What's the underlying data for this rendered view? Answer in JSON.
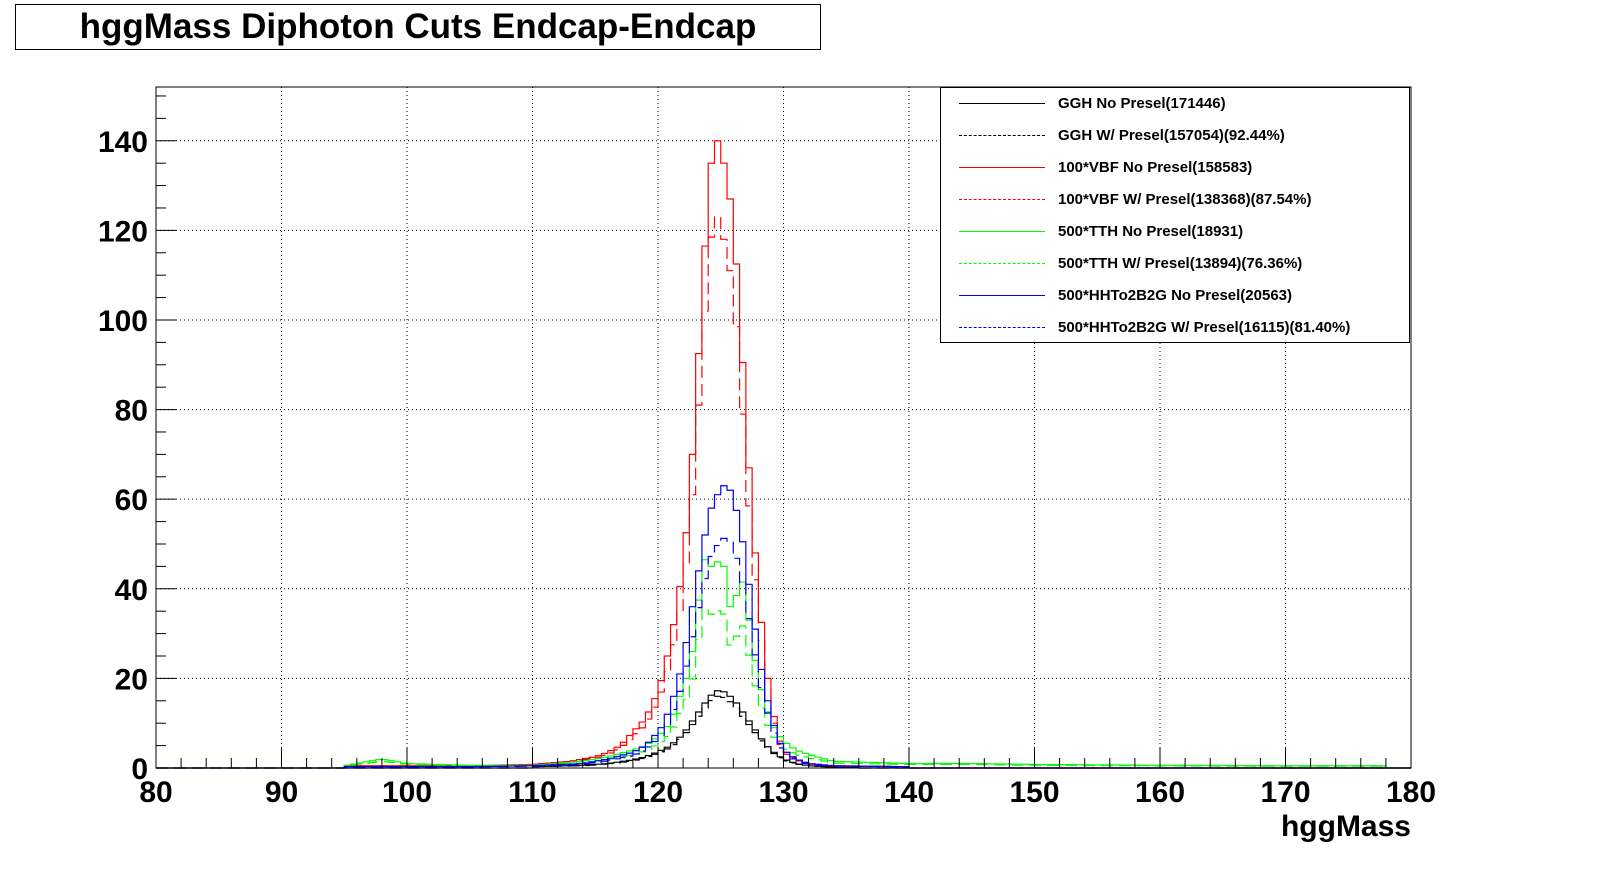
{
  "chart_data": {
    "type": "line",
    "title": "hggMass Diphoton Cuts Endcap-Endcap",
    "xlabel": "hggMass",
    "ylabel": "",
    "xlim": [
      80,
      180
    ],
    "ylim": [
      0,
      152
    ],
    "xticks": [
      80,
      90,
      100,
      110,
      120,
      130,
      140,
      150,
      160,
      170,
      180
    ],
    "yticks": [
      0,
      20,
      40,
      60,
      80,
      100,
      120,
      140
    ],
    "grid": true,
    "legend_position": "top-right",
    "binning": {
      "start": 80,
      "end": 180,
      "bin_width": 0.5
    },
    "series": [
      {
        "name": "GGH No Presel(171446)",
        "color": "#000000",
        "dash": "solid",
        "x": [
          110,
          114,
          116,
          118,
          119,
          120,
          121,
          122,
          122.5,
          123,
          123.5,
          124,
          124.5,
          125,
          125.5,
          126,
          126.5,
          127,
          127.5,
          128,
          128.5,
          129,
          130,
          131,
          132,
          134,
          136
        ],
        "y": [
          0.3,
          0.6,
          1,
          1.8,
          2.5,
          3.6,
          5,
          7.5,
          9.5,
          11.5,
          13.5,
          15.5,
          17,
          17.5,
          16.5,
          15.5,
          13.5,
          11.5,
          9.5,
          7.5,
          5.5,
          4,
          2,
          1,
          0.5,
          0.2,
          0.1
        ]
      },
      {
        "name": "GGH W/ Presel(157054)(92.44%)",
        "color": "#000000",
        "dash": "dashed",
        "x": [
          110,
          114,
          116,
          118,
          119,
          120,
          121,
          122,
          122.5,
          123,
          123.5,
          124,
          124.5,
          125,
          125.5,
          126,
          126.5,
          127,
          127.5,
          128,
          128.5,
          129,
          130,
          131,
          132,
          134,
          136
        ],
        "y": [
          0.3,
          0.5,
          0.9,
          1.6,
          2.3,
          3.3,
          4.6,
          7,
          8.8,
          10.6,
          12.5,
          14.3,
          15.8,
          16.2,
          15.3,
          14.3,
          12.5,
          10.6,
          8.8,
          7,
          5.1,
          3.7,
          1.8,
          0.9,
          0.5,
          0.2,
          0.1
        ]
      },
      {
        "name": "100*VBF No Presel(158583)",
        "color": "#ff0000",
        "dash": "solid",
        "x": [
          95,
          105,
          110,
          113,
          115,
          116,
          117,
          118,
          119,
          120,
          120.5,
          121,
          121.5,
          122,
          122.5,
          123,
          123.5,
          124,
          124.5,
          125,
          125.5,
          126,
          126.5,
          127,
          127.5,
          128,
          128.5,
          129,
          129.5,
          130,
          131,
          132,
          134,
          140
        ],
        "y": [
          0.5,
          0.5,
          0.8,
          1.5,
          2.5,
          3.5,
          5,
          8,
          11,
          17,
          22,
          28,
          36,
          45,
          60,
          80,
          105,
          128,
          142,
          138,
          132,
          122,
          103,
          78,
          56,
          40,
          25,
          15,
          8,
          4,
          2,
          1,
          0.5,
          0.3
        ]
      },
      {
        "name": "100*VBF W/ Presel(138368)(87.54%)",
        "color": "#ff0000",
        "dash": "dashed",
        "x": [
          95,
          105,
          110,
          113,
          115,
          116,
          117,
          118,
          119,
          120,
          120.5,
          121,
          121.5,
          122,
          122.5,
          123,
          123.5,
          124,
          124.5,
          125,
          125.5,
          126,
          126.5,
          127,
          127.5,
          128,
          128.5,
          129,
          129.5,
          130,
          131,
          132,
          134,
          140
        ],
        "y": [
          0.4,
          0.4,
          0.7,
          1.3,
          2.2,
          3,
          4.4,
          7,
          9.6,
          14.9,
          19,
          24,
          31,
          39,
          52,
          70,
          92,
          112,
          125,
          121,
          115,
          107,
          90,
          68,
          49,
          35,
          22,
          13,
          7,
          3.5,
          1.8,
          0.9,
          0.4,
          0.3
        ]
      },
      {
        "name": "500*TTH No Presel(18931)",
        "color": "#00ff00",
        "dash": "solid",
        "x": [
          95,
          98,
          100,
          105,
          110,
          114,
          116,
          118,
          119,
          120,
          121,
          121.5,
          122,
          122.5,
          123,
          123.5,
          124,
          124.5,
          125,
          125.5,
          126,
          126.5,
          127,
          127.5,
          128,
          128.5,
          129,
          130,
          131,
          132,
          134,
          140,
          145,
          150,
          160,
          170,
          178
        ],
        "y": [
          0.5,
          2,
          1,
          0.6,
          0.6,
          1.5,
          2.5,
          4,
          5,
          7,
          10,
          14,
          18,
          22,
          30,
          45,
          48,
          42,
          50,
          40,
          32,
          45,
          38,
          28,
          20,
          15,
          10,
          6,
          4,
          3,
          1.5,
          1,
          1,
          0.8,
          0.6,
          0.5,
          0.5
        ]
      },
      {
        "name": "500*TTH W/ Presel(13894)(76.36%)",
        "color": "#00ff00",
        "dash": "dashed",
        "x": [
          95,
          98,
          100,
          105,
          110,
          114,
          116,
          118,
          119,
          120,
          121,
          121.5,
          122,
          122.5,
          123,
          123.5,
          124,
          124.5,
          125,
          125.5,
          126,
          126.5,
          127,
          127.5,
          128,
          128.5,
          129,
          130,
          131,
          132,
          134,
          140,
          145,
          150,
          160,
          170,
          178
        ],
        "y": [
          0.4,
          1.5,
          0.8,
          0.5,
          0.5,
          1.1,
          1.9,
          3,
          3.8,
          5.3,
          7.6,
          10.7,
          13.7,
          16.8,
          22.9,
          34.4,
          36.7,
          32,
          38.2,
          30.5,
          24.4,
          34.4,
          29,
          21.4,
          15.3,
          11.5,
          7.6,
          4.6,
          3,
          2.3,
          1.1,
          0.8,
          0.8,
          0.6,
          0.5,
          0.4,
          0.4
        ]
      },
      {
        "name": "500*HHTo2B2G No Presel(20563)",
        "color": "#0000ff",
        "dash": "solid",
        "x": [
          95,
          105,
          110,
          114,
          116,
          118,
          119,
          120,
          120.5,
          121,
          121.5,
          122,
          122.5,
          123,
          123.5,
          124,
          124.5,
          125,
          125.5,
          126,
          126.5,
          127,
          127.5,
          128,
          128.5,
          129,
          129.5,
          130,
          131,
          132,
          134,
          140
        ],
        "y": [
          0.3,
          0.3,
          0.5,
          1,
          2,
          3.5,
          5,
          8,
          10,
          14,
          18,
          24,
          32,
          40,
          48,
          56,
          60,
          62,
          64,
          60,
          55,
          46,
          36,
          26,
          18,
          12,
          7,
          4,
          2,
          1,
          0.5,
          0.3
        ]
      },
      {
        "name": "500*HHTo2B2G W/ Presel(16115)(81.40%)",
        "color": "#0000ff",
        "dash": "dashed",
        "x": [
          95,
          105,
          110,
          114,
          116,
          118,
          119,
          120,
          120.5,
          121,
          121.5,
          122,
          122.5,
          123,
          123.5,
          124,
          124.5,
          125,
          125.5,
          126,
          126.5,
          127,
          127.5,
          128,
          128.5,
          129,
          129.5,
          130,
          131,
          132,
          134,
          140
        ],
        "y": [
          0.25,
          0.25,
          0.4,
          0.8,
          1.6,
          2.8,
          4.1,
          6.5,
          8.1,
          11.4,
          14.7,
          19.5,
          26,
          32.6,
          39,
          45.6,
          48.8,
          50.5,
          52,
          48.8,
          44.8,
          37.4,
          29.3,
          21.2,
          14.7,
          9.8,
          5.7,
          3.3,
          1.6,
          0.8,
          0.4,
          0.25
        ]
      }
    ]
  }
}
